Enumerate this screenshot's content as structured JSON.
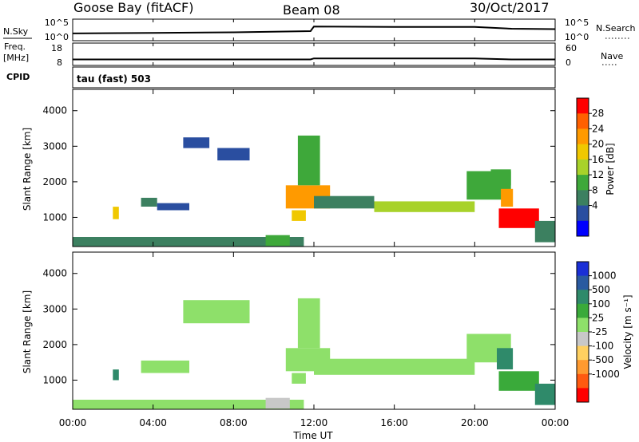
{
  "header": {
    "station": "Goose Bay (fitACF)",
    "beam": "Beam 08",
    "date": "30/Oct/2017"
  },
  "summary_panels": {
    "nsky_label": "N.Sky",
    "nsky_ticks": [
      "10^5",
      "10^0"
    ],
    "nsearch_label": "N.Search",
    "nsearch_ticks": [
      "10^5",
      "10^0"
    ],
    "freq_label_1": "Freq.",
    "freq_label_2": "[MHz]",
    "freq_ticks": [
      "18",
      "8"
    ],
    "nave_label": "Nave",
    "nave_ticks": [
      "60",
      "0"
    ],
    "cpid_label": "CPID",
    "cpid_value": "tau (fast) 503"
  },
  "xaxis": {
    "label": "Time UT",
    "ticks": [
      "00:00",
      "04:00",
      "08:00",
      "12:00",
      "16:00",
      "20:00",
      "00:00"
    ]
  },
  "power_colorbar": {
    "label": "Power [dB]",
    "ticks": [
      "28",
      "24",
      "20",
      "16",
      "12",
      "8",
      "4"
    ],
    "colors": [
      "#ff0000",
      "#ff6000",
      "#ff9a00",
      "#f0c800",
      "#a8d22a",
      "#3ea83a",
      "#3c8060",
      "#2a4ea0",
      "#0000ff"
    ]
  },
  "velocity_colorbar": {
    "label": "Velocity [m s⁻¹]",
    "ticks": [
      "1000",
      "500",
      "100",
      "25",
      "-25",
      "-100",
      "-500",
      "-1000"
    ],
    "colors": [
      "#1a2fd6",
      "#2a5aa0",
      "#2f8a6a",
      "#3aaa3a",
      "#8ee06a",
      "#c8c8c8",
      "#ffd060",
      "#ff9a30",
      "#ff5a10",
      "#ff0000"
    ]
  },
  "chart_data": [
    {
      "type": "line",
      "panel": "N.Sky / N.Search",
      "x": [
        "00:00",
        "04:00",
        "08:00",
        "11:50",
        "12:00",
        "16:00",
        "20:00",
        "21:50",
        "24:00"
      ],
      "series": [
        {
          "name": "N.Sky",
          "values": [
            30,
            40,
            60,
            120,
            2000,
            1500,
            1500,
            500,
            400
          ]
        }
      ],
      "ylim": [
        1,
        100000
      ],
      "yscale": "log"
    },
    {
      "type": "line",
      "panel": "Freq. / Nave",
      "x": [
        "00:00",
        "04:00",
        "08:00",
        "11:50",
        "12:00",
        "16:00",
        "20:00",
        "21:50",
        "24:00"
      ],
      "series": [
        {
          "name": "Freq.",
          "values": [
            10.5,
            10.5,
            10.5,
            10.5,
            11,
            11,
            11,
            10.5,
            10.5
          ]
        }
      ],
      "ylim": [
        8,
        18
      ]
    },
    {
      "type": "heatmap",
      "panel": "Power",
      "ylabel": "Slant Range [km]",
      "xlabel": "",
      "xlim_hours": [
        0,
        24
      ],
      "ylim": [
        180,
        4600
      ],
      "yticks": [
        "4000",
        "3000",
        "2000",
        "1000"
      ],
      "ytick_values": [
        4000,
        3000,
        2000,
        1000
      ],
      "colorbar_range": [
        0,
        30
      ],
      "regions": [
        {
          "t0": 0.0,
          "t1": 11.5,
          "r0": 180,
          "r1": 450,
          "value": 8
        },
        {
          "t0": 2.0,
          "t1": 2.3,
          "r0": 950,
          "r1": 1300,
          "value": 18
        },
        {
          "t0": 3.4,
          "t1": 4.2,
          "r0": 1300,
          "r1": 1550,
          "value": 8
        },
        {
          "t0": 4.2,
          "t1": 5.8,
          "r0": 1200,
          "r1": 1400,
          "value": 6
        },
        {
          "t0": 5.5,
          "t1": 6.8,
          "r0": 2950,
          "r1": 3250,
          "value": 6
        },
        {
          "t0": 7.2,
          "t1": 8.8,
          "r0": 2600,
          "r1": 2950,
          "value": 6
        },
        {
          "t0": 9.6,
          "t1": 10.8,
          "r0": 200,
          "r1": 500,
          "value": 12
        },
        {
          "t0": 10.6,
          "t1": 12.8,
          "r0": 1250,
          "r1": 1900,
          "value": 22
        },
        {
          "t0": 10.9,
          "t1": 11.6,
          "r0": 900,
          "r1": 1200,
          "value": 18
        },
        {
          "t0": 11.2,
          "t1": 12.3,
          "r0": 1900,
          "r1": 3300,
          "value": 12
        },
        {
          "t0": 12.0,
          "t1": 15.0,
          "r0": 1250,
          "r1": 1600,
          "value": 9
        },
        {
          "t0": 15.0,
          "t1": 20.0,
          "r0": 1150,
          "r1": 1450,
          "value": 14
        },
        {
          "t0": 19.6,
          "t1": 21.8,
          "r0": 1500,
          "r1": 2300,
          "value": 10
        },
        {
          "t0": 20.8,
          "t1": 21.8,
          "r0": 1900,
          "r1": 2350,
          "value": 12
        },
        {
          "t0": 21.3,
          "t1": 21.9,
          "r0": 1300,
          "r1": 1800,
          "value": 20
        },
        {
          "t0": 21.2,
          "t1": 23.2,
          "r0": 700,
          "r1": 1250,
          "value": 27
        },
        {
          "t0": 23.0,
          "t1": 24.0,
          "r0": 300,
          "r1": 900,
          "value": 8
        }
      ]
    },
    {
      "type": "heatmap",
      "panel": "Velocity",
      "ylabel": "Slant Range [km]",
      "xlabel": "Time UT",
      "xlim_hours": [
        0,
        24
      ],
      "ylim": [
        180,
        4600
      ],
      "yticks": [
        "4000",
        "3000",
        "2000",
        "1000"
      ],
      "ytick_values": [
        4000,
        3000,
        2000,
        1000
      ],
      "colorbar_range": [
        -1000,
        1000
      ],
      "regions": [
        {
          "t0": 0.0,
          "t1": 11.5,
          "r0": 180,
          "r1": 450,
          "value": 10
        },
        {
          "t0": 2.0,
          "t1": 2.3,
          "r0": 1000,
          "r1": 1300,
          "value": 150
        },
        {
          "t0": 3.4,
          "t1": 5.8,
          "r0": 1200,
          "r1": 1550,
          "value": 0
        },
        {
          "t0": 5.5,
          "t1": 8.8,
          "r0": 2600,
          "r1": 3250,
          "value": 0
        },
        {
          "t0": 9.6,
          "t1": 10.8,
          "r0": 200,
          "r1": 500,
          "value": -60
        },
        {
          "t0": 10.6,
          "t1": 12.8,
          "r0": 1250,
          "r1": 1900,
          "value": 0
        },
        {
          "t0": 10.9,
          "t1": 11.6,
          "r0": 900,
          "r1": 1200,
          "value": 0
        },
        {
          "t0": 11.2,
          "t1": 12.3,
          "r0": 1900,
          "r1": 3300,
          "value": 0
        },
        {
          "t0": 12.0,
          "t1": 20.0,
          "r0": 1150,
          "r1": 1600,
          "value": 0
        },
        {
          "t0": 19.6,
          "t1": 21.8,
          "r0": 1500,
          "r1": 2300,
          "value": 0
        },
        {
          "t0": 21.1,
          "t1": 21.9,
          "r0": 1300,
          "r1": 1900,
          "value": 200
        },
        {
          "t0": 21.2,
          "t1": 23.2,
          "r0": 700,
          "r1": 1250,
          "value": 80
        },
        {
          "t0": 23.0,
          "t1": 24.0,
          "r0": 300,
          "r1": 900,
          "value": 150
        }
      ]
    }
  ]
}
